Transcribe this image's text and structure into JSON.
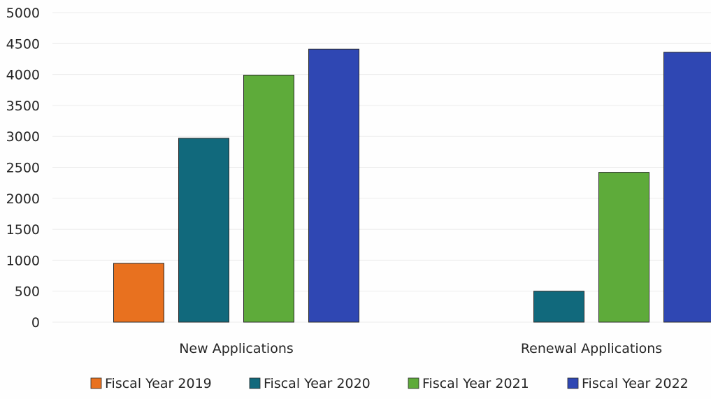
{
  "chart_data": {
    "type": "bar",
    "categories": [
      "New Applications",
      "Renewal Applications"
    ],
    "series": [
      {
        "name": "Fiscal Year 2019",
        "values": [
          950,
          0
        ]
      },
      {
        "name": "Fiscal Year 2020",
        "values": [
          2970,
          500
        ]
      },
      {
        "name": "Fiscal Year 2021",
        "values": [
          3990,
          2420
        ]
      },
      {
        "name": "Fiscal Year 2022",
        "values": [
          4410,
          4360
        ]
      }
    ],
    "colors": [
      "#e8711f",
      "#11697c",
      "#5eab3a",
      "#2f47b3"
    ],
    "ylim": [
      0,
      5000
    ],
    "yticks": [
      "0",
      "500",
      "1000",
      "1500",
      "2000",
      "2500",
      "3000",
      "3500",
      "4000",
      "4500",
      "5000"
    ],
    "grid": true,
    "legend_position": "bottom",
    "title": "",
    "xlabel": "",
    "ylabel": ""
  }
}
